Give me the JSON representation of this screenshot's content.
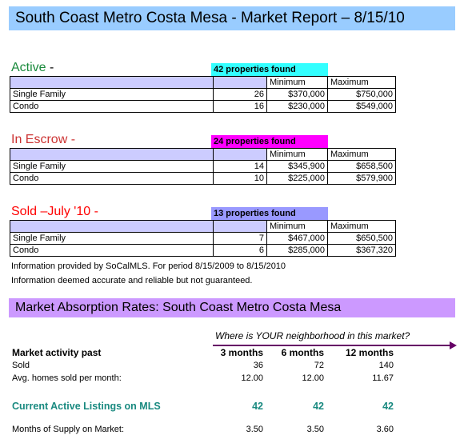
{
  "title": "South Coast Metro Costa Mesa - Market Report – 8/15/10",
  "sections": [
    {
      "heading": "Active",
      "suffix": " -",
      "found": "42 properties found",
      "found_color": "#33ffff",
      "heading_color": "#1a8a3c",
      "col_min": "Minimum",
      "col_max": "Maximum",
      "rows": [
        {
          "type": "Single Family",
          "count": "26",
          "min": "$370,000",
          "max": "$750,000"
        },
        {
          "type": "Condo",
          "count": "16",
          "min": "$230,000",
          "max": "$549,000"
        }
      ]
    },
    {
      "heading": "In Escrow -",
      "suffix": "",
      "found": "24 properties found",
      "found_color": "#ff00ff",
      "heading_color": "#cc3333",
      "col_min": "Minimum",
      "col_max": "Maximum",
      "rows": [
        {
          "type": "Single Family",
          "count": "14",
          "min": "$345,900",
          "max": "$658,500"
        },
        {
          "type": "Condo",
          "count": "10",
          "min": "$225,000",
          "max": "$579,900"
        }
      ]
    },
    {
      "heading": "Sold –July '10 -",
      "suffix": "",
      "found": "13 properties found",
      "found_color": "#9999ff",
      "heading_color": "#ff0000",
      "col_min": "Minimum",
      "col_max": "Maximum",
      "rows": [
        {
          "type": "Single Family",
          "count": "7",
          "min": "$467,000",
          "max": "$650,500"
        },
        {
          "type": "Condo",
          "count": "6",
          "min": "$285,000",
          "max": "$367,320"
        }
      ]
    }
  ],
  "notes": [
    "Information provided by SoCalMLS.  For period 8/15/2009 to 8/15/2010",
    "Information deemed accurate and reliable but not guaranteed."
  ],
  "absorption": {
    "title": "Market Absorption Rates:  South Coast Metro Costa Mesa",
    "question": "Where is YOUR neighborhood in this market?",
    "arrow_color": "#660066",
    "header_label": "Market activity past",
    "periods": [
      "3 months",
      "6 months",
      "12 months"
    ],
    "sold_label": "Sold",
    "sold": [
      "36",
      "72",
      "140"
    ],
    "avg_label": "Avg. homes sold per month:",
    "avg": [
      "12.00",
      "12.00",
      "11.67"
    ],
    "active_label": "Current Active Listings on MLS",
    "active": [
      "42",
      "42",
      "42"
    ],
    "supply_label": "Months of Supply on Market:",
    "supply": [
      "3.50",
      "3.50",
      "3.60"
    ]
  }
}
